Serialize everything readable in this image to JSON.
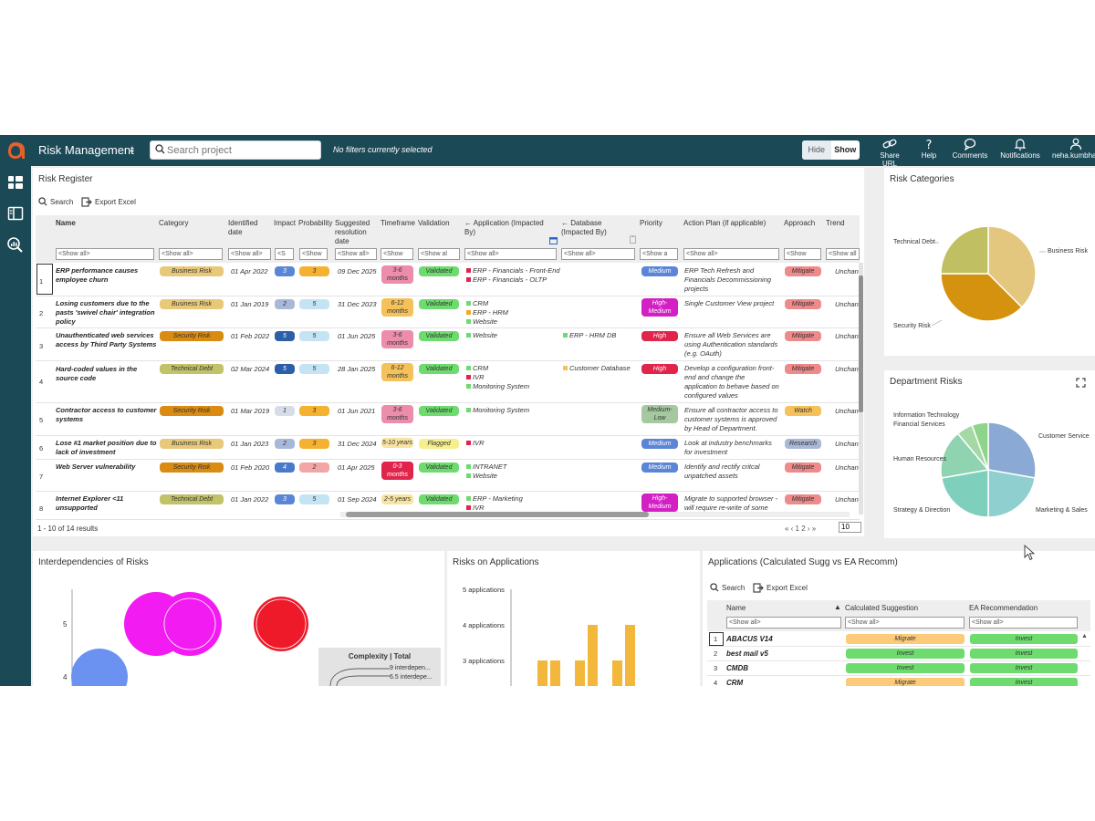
{
  "colors": {
    "topbar": "#1b4956",
    "accent_orange": "#e5602b",
    "validated": "#6ddb6d",
    "flagged": "#f6ef8e",
    "high": "#e0244c",
    "medium": "#5b86d8",
    "high_medium": "#d31fc4",
    "medium_low": "#a6c8a0",
    "mitigate": "#ee8a8a",
    "watch": "#f5c15a",
    "research": "#a9b8d6",
    "business_risk": "#e8c97a",
    "security_risk": "#d98b12",
    "technical_debt": "#c2c268"
  },
  "topbar": {
    "title": "Risk Management",
    "search_placeholder": "Search project",
    "filters_text": "No filters currently selected",
    "hide_label": "Hide",
    "show_label": "Show",
    "actions": [
      "Share URL",
      "Help",
      "Comments",
      "Notifications",
      "neha.kumbha"
    ]
  },
  "register": {
    "title": "Risk Register",
    "search_label": "Search",
    "export_label": "Export Excel",
    "headers": {
      "name": "Name",
      "category": "Category",
      "identified": "Identified date",
      "impact": "Impact",
      "probability": "Probability",
      "suggested": "Suggested resolution date",
      "timeframe": "Timeframe",
      "validation": "Validation",
      "application": "← Application (Impacted By)",
      "database": "← Database (Impacted By)",
      "priority": "Priority",
      "action_plan": "Action Plan (if applicable)",
      "approach": "Approach",
      "trend": "Trend"
    },
    "filters": {
      "name": "<Show all>",
      "category": "<Show all>",
      "identified": "<Show all>",
      "impact": "<S",
      "probability": "<Show",
      "suggested": "<Show all>",
      "timeframe": "<Show",
      "validation": "<Show al",
      "application": "<Show all>",
      "database": "<Show all>",
      "priority": "<Show a",
      "action_plan": "<Show all>",
      "approach": "<Show",
      "trend": "<Show all"
    },
    "rows": [
      {
        "n": "1",
        "name": "ERP performance causes employee churn",
        "category": "Business Risk",
        "identified": "01 Apr 2022",
        "impact": "3",
        "probability": "3",
        "suggested": "09 Dec 2025",
        "timeframe": "3-6 months",
        "validation": "Validated",
        "apps": [
          "ERP - Financials - Front-End",
          "ERP - Financials - OLTP"
        ],
        "db": "",
        "priority": "Medium",
        "action": "ERP Tech Refresh and Financials Decommissioning projects",
        "approach": "Mitigate",
        "trend": "Unchan"
      },
      {
        "n": "2",
        "name": "Losing customers due to the pasts 'swivel chair' integration policy",
        "category": "Business Risk",
        "identified": "01 Jan 2019",
        "impact": "2",
        "probability": "5",
        "suggested": "31 Dec 2023",
        "timeframe": "6-12 months",
        "validation": "Validated",
        "apps": [
          "CRM",
          "ERP - HRM",
          "Website"
        ],
        "db": "",
        "priority": "High-Medium",
        "action": "Single Customer View project",
        "approach": "Mitigate",
        "trend": "Unchan"
      },
      {
        "n": "3",
        "name": "Unauthenticated web services access by Third Party Systems",
        "category": "Security Risk",
        "identified": "01 Feb 2022",
        "impact": "5",
        "probability": "5",
        "suggested": "01 Jun 2025",
        "timeframe": "3-6 months",
        "validation": "Validated",
        "apps": [
          "Website"
        ],
        "db": "ERP - HRM DB",
        "priority": "High",
        "action": "Ensure all Web Services are using Authentication standards (e.g. OAuth)",
        "approach": "Mitigate",
        "trend": "Unchan"
      },
      {
        "n": "4",
        "name": "Hard-coded values in the source code",
        "category": "Technical Debt",
        "identified": "02 Mar 2024",
        "impact": "5",
        "probability": "5",
        "suggested": "28 Jan 2025",
        "timeframe": "6-12 months",
        "validation": "Validated",
        "apps": [
          "CRM",
          "IVR",
          "Monitoring System"
        ],
        "db": "Customer Database",
        "priority": "High",
        "action": "Develop a configuration front-end and change the application to behave based on configured values",
        "approach": "Mitigate",
        "trend": "Unchan"
      },
      {
        "n": "5",
        "name": "Contractor access to customer systems",
        "category": "Security Risk",
        "identified": "01 Mar 2019",
        "impact": "1",
        "probability": "3",
        "suggested": "01 Jun 2021",
        "timeframe": "3-6 months",
        "validation": "Validated",
        "apps": [
          "Monitoring System"
        ],
        "db": "",
        "priority": "Medium-Low",
        "action": "Ensure all contractor access to customer systems is approved by Head of Department.",
        "approach": "Watch",
        "trend": "Unchan"
      },
      {
        "n": "6",
        "name": "Lose #1 market position due to lack of investment",
        "category": "Business Risk",
        "identified": "01 Jan 2023",
        "impact": "2",
        "probability": "3",
        "suggested": "31 Dec 2024",
        "timeframe": "5-10 years",
        "validation": "Flagged",
        "apps": [
          "IVR"
        ],
        "db": "",
        "priority": "Medium",
        "action": "Look at industry benchmarks for investment",
        "approach": "Research",
        "trend": "Unchan"
      },
      {
        "n": "7",
        "name": "Web Server vulnerability",
        "category": "Security Risk",
        "identified": "01 Feb 2020",
        "impact": "4",
        "probability": "2",
        "suggested": "01 Apr 2025",
        "timeframe": "0-3 months",
        "validation": "Validated",
        "apps": [
          "INTRANET",
          "Website"
        ],
        "db": "",
        "priority": "Medium",
        "action": "Identify and rectify critcal unpatched assets",
        "approach": "Mitigate",
        "trend": "Unchan"
      },
      {
        "n": "8",
        "name": "Internet Explorer <11 unsupported",
        "category": "Technical Debt",
        "identified": "01 Jan 2022",
        "impact": "3",
        "probability": "5",
        "suggested": "01 Sep 2024",
        "timeframe": "2-5 years",
        "validation": "Validated",
        "apps": [
          "ERP - Marketing",
          "IVR"
        ],
        "db": "",
        "priority": "High-Medium",
        "action": "Migrate to supported browser - will require re-write of some",
        "approach": "Mitigate",
        "trend": "Unchan"
      }
    ],
    "footer": "1 - 10 of 14 results",
    "pager": "« ‹ 1  2 › »",
    "page_size": "10"
  },
  "risk_categories": {
    "title": "Risk Categories",
    "labels": {
      "technical_debt": "Technical Debt",
      "business_risk": "Business Risk",
      "security_risk": "Security Risk"
    },
    "chart_data": {
      "type": "pie",
      "slices": [
        {
          "label": "Business Risk",
          "value": 3,
          "color": "#e3c77e"
        },
        {
          "label": "Security Risk",
          "value": 3,
          "color": "#d4920f"
        },
        {
          "label": "Technical Debt",
          "value": 2,
          "color": "#c0c062"
        }
      ]
    }
  },
  "department_risks": {
    "title": "Department Risks",
    "labels": {
      "it": "Information Technology",
      "fs": "Financial Services",
      "hr": "Human Resources",
      "sd": "Strategy & Direction",
      "cs": "Customer Service",
      "ms": "Marketing & Sales"
    },
    "chart_data": {
      "type": "pie",
      "slices": [
        {
          "label": "Customer Service",
          "value": 5,
          "color": "#8aa9d4"
        },
        {
          "label": "Marketing & Sales",
          "value": 4,
          "color": "#8fcfcf"
        },
        {
          "label": "Strategy & Direction",
          "value": 4,
          "color": "#7fcfbd"
        },
        {
          "label": "Human Resources",
          "value": 3,
          "color": "#8fd3b0"
        },
        {
          "label": "Financial Services",
          "value": 1,
          "color": "#a4d9a6"
        },
        {
          "label": "Information Technology",
          "value": 1,
          "color": "#8fd48b"
        }
      ]
    }
  },
  "interdependencies": {
    "title": "Interdependencies of Risks",
    "y_ticks": [
      "5",
      "4"
    ],
    "legend_title": "Complexity | Total",
    "legend_items": [
      "9 interdepen...",
      "6.5 interdepe..."
    ]
  },
  "risks_on_apps": {
    "title": "Risks on Applications",
    "chart_data": {
      "type": "bar",
      "y_ticks": [
        "5 applications",
        "4 applications",
        "3 applications"
      ],
      "values": [
        3,
        3,
        3,
        4,
        3,
        4
      ],
      "color": "#f2b73b"
    }
  },
  "apps_calc": {
    "title": "Applications (Calculated Sugg vs EA Recomm)",
    "search_label": "Search",
    "export_label": "Export Excel",
    "headers": {
      "name": "Name",
      "calc": "Calculated Suggestion",
      "ea": "EA Recommendation"
    },
    "filters": {
      "name": "<Show all>",
      "calc": "<Show all>",
      "ea": "<Show all>"
    },
    "rows": [
      {
        "n": "1",
        "name": "ABACUS V14",
        "calc": "Migrate",
        "ea": "Invest"
      },
      {
        "n": "2",
        "name": "best mail v5",
        "calc": "Invest",
        "ea": "Invest"
      },
      {
        "n": "3",
        "name": "CMDB",
        "calc": "Invest",
        "ea": "Invest"
      },
      {
        "n": "4",
        "name": "CRM",
        "calc": "Migrate",
        "ea": "Invest"
      }
    ]
  }
}
